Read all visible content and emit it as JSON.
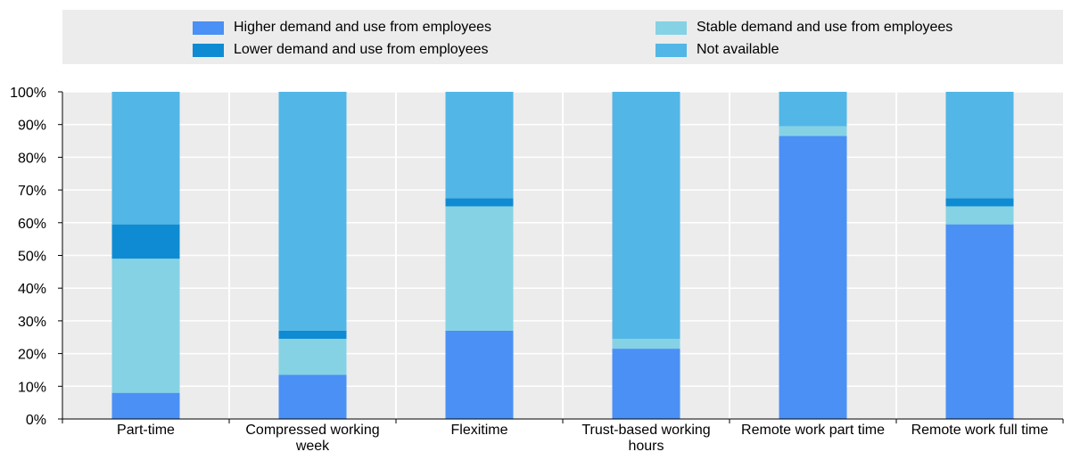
{
  "chart_data": {
    "type": "bar",
    "stacked": true,
    "categories": [
      [
        "Part-time"
      ],
      [
        "Compressed working",
        "week"
      ],
      [
        "Flexitime"
      ],
      [
        "Trust-based working",
        "hours"
      ],
      [
        "Remote work part time"
      ],
      [
        "Remote work full time"
      ]
    ],
    "series": [
      {
        "name": "Higher demand and use from employees",
        "color": "#4a90f5",
        "values": [
          8,
          13.5,
          27,
          21.5,
          86.5,
          59.5
        ]
      },
      {
        "name": "Stable demand and use from employees",
        "color": "#85d2e4",
        "values": [
          41,
          11,
          38,
          3,
          3,
          5.5
        ]
      },
      {
        "name": "Lower demand and use from employees",
        "color": "#0f8bd3",
        "values": [
          10.5,
          2.5,
          2.5,
          0,
          0,
          2.5
        ]
      },
      {
        "name": "Not available",
        "color": "#52b6e6",
        "values": [
          40.5,
          73,
          32.5,
          75.5,
          10.5,
          32.5
        ]
      }
    ],
    "yticks": [
      "0%",
      "10%",
      "20%",
      "30%",
      "40%",
      "50%",
      "60%",
      "70%",
      "80%",
      "90%",
      "100%"
    ],
    "ylim": [
      0,
      100
    ],
    "xlabel": "",
    "ylabel": "",
    "grid": true,
    "legend_position": "top"
  }
}
